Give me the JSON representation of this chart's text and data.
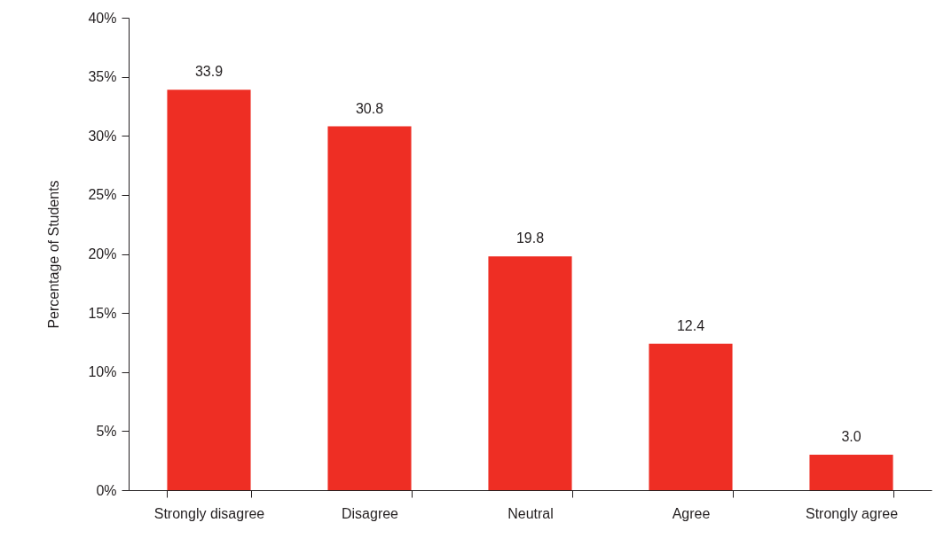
{
  "chart_data": {
    "type": "bar",
    "ylabel": "Percentage of Students",
    "categories": [
      "Strongly disagree",
      "Disagree",
      "Neutral",
      "Agree",
      "Strongly agree"
    ],
    "values": [
      33.9,
      30.8,
      19.8,
      12.4,
      3.0
    ],
    "value_labels": [
      "33.9",
      "30.8",
      "19.8",
      "12.4",
      "3.0"
    ],
    "color": "#ee2e24",
    "ylim": [
      0,
      40
    ],
    "yticks": [
      {
        "value": 0,
        "label": "0%"
      },
      {
        "value": 5,
        "label": "5%"
      },
      {
        "value": 10,
        "label": "10%"
      },
      {
        "value": 15,
        "label": "15%"
      },
      {
        "value": 20,
        "label": "20%"
      },
      {
        "value": 25,
        "label": "25%"
      },
      {
        "value": 30,
        "label": "30%"
      },
      {
        "value": 35,
        "label": "35%"
      },
      {
        "value": 40,
        "label": "40%"
      }
    ],
    "grid": false
  }
}
